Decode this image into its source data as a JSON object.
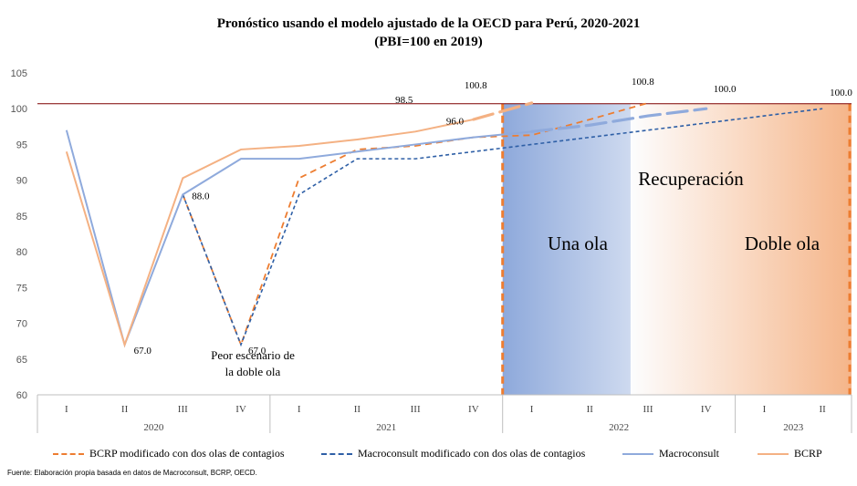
{
  "colors": {
    "bcrp": "#F4B183",
    "bcrp_dashed": "#ED7D31",
    "macroconsult": "#8FAADC",
    "macroconsult_dashed": "#2E5FA6",
    "reference_line": "#7F0000",
    "divider_orange": "#ED7D31",
    "region_blue": "#8EA9DB",
    "region_orange": "#F4B183"
  },
  "chart_data": {
    "type": "line",
    "title": "Pronóstico usando el modelo ajustado de la OECD para Perú, 2020-2021",
    "subtitle": "(PBI=100 en 2019)",
    "ylim": [
      60,
      105
    ],
    "yticks": [
      60,
      65,
      70,
      75,
      80,
      85,
      90,
      95,
      100,
      105
    ],
    "grid": false,
    "legend_position": "bottom",
    "reference_line": 100.7,
    "categories": [
      "I",
      "II",
      "III",
      "IV",
      "I",
      "II",
      "III",
      "IV",
      "I",
      "II",
      "III",
      "IV",
      "I",
      "II"
    ],
    "years": [
      {
        "label": "2020",
        "start": 0,
        "end": 4
      },
      {
        "label": "2021",
        "start": 4,
        "end": 8
      },
      {
        "label": "2022",
        "start": 8,
        "end": 12
      },
      {
        "label": "2023",
        "start": 12,
        "end": 14
      }
    ],
    "series": [
      {
        "name": "BCRP modificado con dos olas de contagios",
        "style": "dashed",
        "color": "#ED7D31",
        "values": [
          null,
          null,
          88.0,
          67.0,
          90.3,
          94.3,
          94.8,
          96.0,
          96.3,
          98.5,
          100.8,
          null,
          null,
          null
        ]
      },
      {
        "name": "Macroconsult modificado con dos olas de contagios",
        "style": "dashed-fine",
        "color": "#2E5FA6",
        "values": [
          null,
          null,
          88.0,
          67.0,
          88.0,
          93.0,
          93.0,
          94.0,
          95.0,
          96.0,
          97.0,
          98.0,
          99.0,
          100.0
        ]
      },
      {
        "name": "Macroconsult",
        "style": "solid",
        "color": "#8FAADC",
        "values": [
          97.0,
          67.0,
          88.0,
          93.0,
          93.0,
          94.0,
          95.0,
          96.0,
          96.8,
          97.7,
          99.0,
          100.0,
          null,
          null
        ]
      },
      {
        "name": "BCRP",
        "style": "solid",
        "color": "#F4B183",
        "values": [
          94.0,
          67.0,
          90.3,
          94.3,
          94.8,
          95.7,
          96.8,
          98.5,
          100.8,
          null,
          null,
          null,
          null,
          null
        ]
      }
    ],
    "segments_dashed_long": [
      {
        "series": "Macroconsult",
        "from": 8,
        "to": 11
      },
      {
        "series": "BCRP",
        "from": 7.4,
        "to": 8
      }
    ],
    "data_labels": [
      {
        "text": "67.0",
        "i": 1,
        "y": 67.0
      },
      {
        "text": "88.0",
        "i": 2,
        "y": 88.0
      },
      {
        "text": "67.0",
        "i": 3,
        "y": 67.0
      },
      {
        "text": "98.5",
        "i": 6,
        "y": 98.5
      },
      {
        "text": "100.8",
        "i": 7,
        "y": 100.8
      },
      {
        "text": "96.0",
        "i": 7,
        "y": 96.0
      },
      {
        "text": "100.8",
        "i": 10,
        "y": 100.8
      },
      {
        "text": "100.0",
        "i": 11,
        "y": 100.0
      },
      {
        "text": "100.0",
        "i": 13,
        "y": 100.0
      }
    ],
    "annotations": {
      "worst_case": "Peor escenario de la doble ola",
      "recovery": "Recuperación",
      "one_wave": "Una ola",
      "double_wave": "Doble ola"
    }
  },
  "source": "Fuente: Elaboración propia basada en datos de Macroconsult, BCRP, OECD."
}
